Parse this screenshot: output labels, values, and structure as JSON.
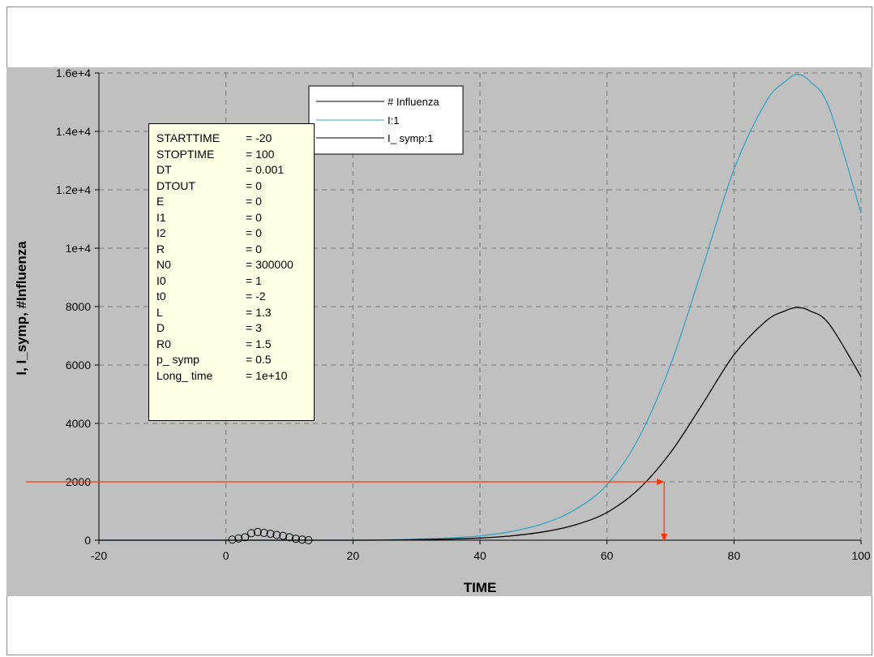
{
  "chart_data": {
    "type": "line",
    "xlabel": "TIME",
    "ylabel": "I, I_symp, #Influenza",
    "xlim": [
      -20,
      100
    ],
    "ylim": [
      0,
      16000
    ],
    "x_ticks": [
      "-20",
      "0",
      "20",
      "40",
      "60",
      "80",
      "100"
    ],
    "y_ticks": [
      "0",
      "2000",
      "4000",
      "6000",
      "8000",
      "1e+4",
      "1.2e+4",
      "1.4e+4",
      "1.6e+4"
    ],
    "grid": true,
    "legend_position": "top-center",
    "series": [
      {
        "name": "# Influenza",
        "style": "markers",
        "color": "#000000",
        "x": [
          1,
          2,
          3,
          4,
          5,
          6,
          7,
          8,
          9,
          10,
          11,
          12,
          13
        ],
        "values": [
          20,
          60,
          100,
          240,
          280,
          250,
          220,
          180,
          150,
          100,
          50,
          20,
          0
        ]
      },
      {
        "name": "I:1",
        "style": "line",
        "color": "#3aa3c2",
        "x": [
          -20,
          20,
          30,
          35,
          40,
          45,
          50,
          55,
          60,
          65,
          70,
          75,
          80,
          85,
          88,
          90,
          92,
          95,
          100
        ],
        "values": [
          0,
          0,
          40,
          80,
          150,
          300,
          570,
          1050,
          1900,
          3500,
          6000,
          9300,
          12700,
          15000,
          15700,
          15950,
          15700,
          14800,
          11200
        ]
      },
      {
        "name": "I_ symp:1",
        "style": "line",
        "color": "#000000",
        "x": [
          -20,
          20,
          30,
          35,
          40,
          45,
          50,
          55,
          60,
          65,
          70,
          75,
          80,
          85,
          88,
          90,
          92,
          95,
          100
        ],
        "values": [
          0,
          0,
          20,
          40,
          75,
          150,
          285,
          525,
          950,
          1750,
          3000,
          4650,
          6350,
          7500,
          7850,
          7970,
          7850,
          7400,
          5600
        ]
      }
    ],
    "annotation": {
      "color": "#ff3300",
      "level_y": 2000,
      "x_end": 69,
      "drop_to_y": 0
    },
    "parameters": [
      {
        "name": "STARTTIME",
        "value": "= -20"
      },
      {
        "name": "STOPTIME",
        "value": "= 100"
      },
      {
        "name": "DT",
        "value": "= 0.001"
      },
      {
        "name": "DTOUT",
        "value": "= 0"
      },
      {
        "name": "E",
        "value": "= 0"
      },
      {
        "name": "I1",
        "value": "= 0"
      },
      {
        "name": "I2",
        "value": "= 0"
      },
      {
        "name": "R",
        "value": "= 0"
      },
      {
        "name": "N0",
        "value": "= 300000"
      },
      {
        "name": "I0",
        "value": "= 1"
      },
      {
        "name": "t0",
        "value": "= -2"
      },
      {
        "name": "L",
        "value": "= 1.3"
      },
      {
        "name": "D",
        "value": "= 3"
      },
      {
        "name": "R0",
        "value": "= 1.5"
      },
      {
        "name": "p_ symp",
        "value": "= 0.5"
      },
      {
        "name": "Long_ time",
        "value": "= 1e+10"
      }
    ]
  }
}
